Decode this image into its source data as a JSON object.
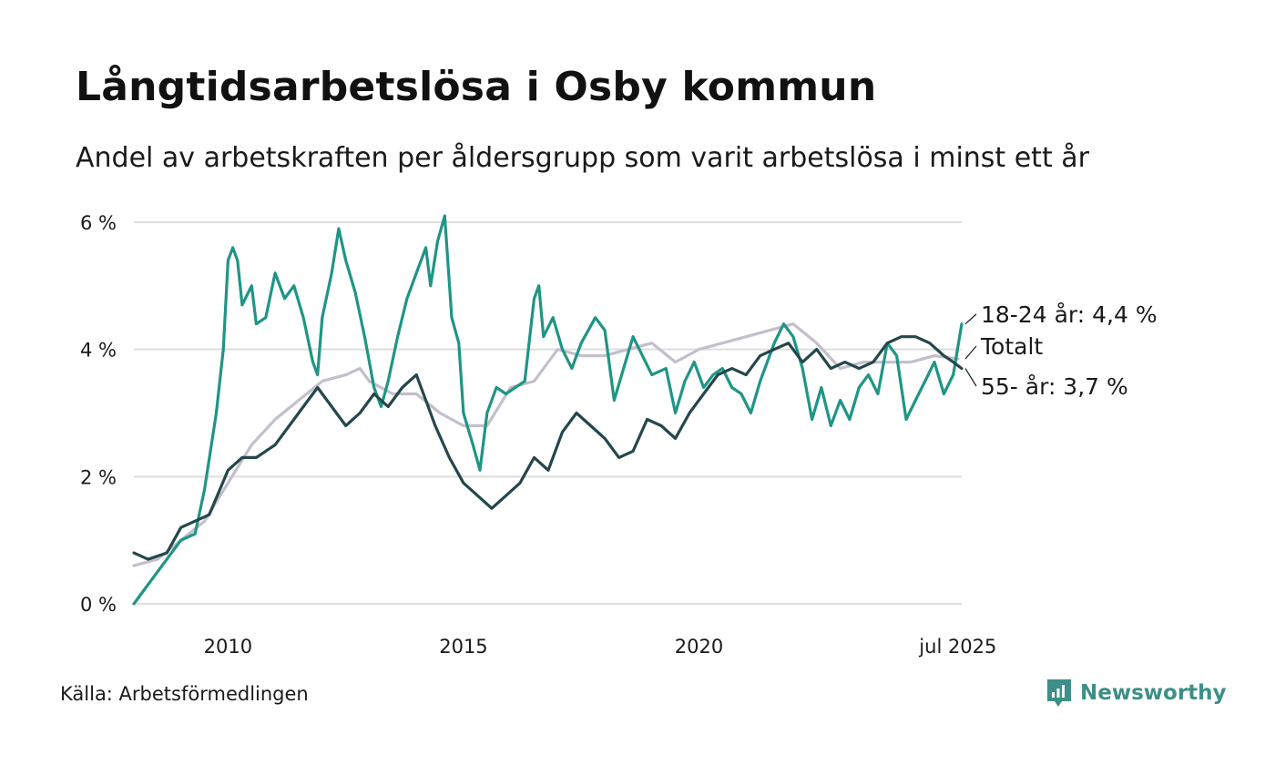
{
  "title": "Långtidsarbetslösa i Osby kommun",
  "subtitle": "Andel av arbetskraften per åldersgrupp som varit arbetslösa i minst ett år",
  "source": "Källa: Arbetsförmedlingen",
  "brand": {
    "name": "Newsworthy",
    "icon": "newsworthy-logo-icon",
    "color": "#3d8f87"
  },
  "chart_data": {
    "type": "line",
    "x_unit": "year (decimal)",
    "xlim": [
      2008.0,
      2025.58
    ],
    "ylim": [
      0,
      6.2
    ],
    "x_ticks": [
      {
        "value": 2010,
        "label": "2010"
      },
      {
        "value": 2015,
        "label": "2015"
      },
      {
        "value": 2020,
        "label": "2020"
      },
      {
        "value": 2025.5,
        "label": "jul 2025"
      }
    ],
    "y_ticks": [
      {
        "value": 0,
        "label": "0 %"
      },
      {
        "value": 2,
        "label": "2 %"
      },
      {
        "value": 4,
        "label": "4 %"
      },
      {
        "value": 6,
        "label": "6 %"
      }
    ],
    "grid": true,
    "series": [
      {
        "name": "Totalt",
        "end_label": "Totalt",
        "color": "#c3bfcb",
        "points": [
          [
            2008.0,
            0.6
          ],
          [
            2008.5,
            0.7
          ],
          [
            2009.0,
            1.0
          ],
          [
            2009.5,
            1.3
          ],
          [
            2010.0,
            1.9
          ],
          [
            2010.5,
            2.5
          ],
          [
            2011.0,
            2.9
          ],
          [
            2011.5,
            3.2
          ],
          [
            2012.0,
            3.5
          ],
          [
            2012.5,
            3.6
          ],
          [
            2012.8,
            3.7
          ],
          [
            2013.0,
            3.5
          ],
          [
            2013.5,
            3.3
          ],
          [
            2014.0,
            3.3
          ],
          [
            2014.5,
            3.0
          ],
          [
            2015.0,
            2.8
          ],
          [
            2015.5,
            2.8
          ],
          [
            2016.0,
            3.4
          ],
          [
            2016.5,
            3.5
          ],
          [
            2017.0,
            4.0
          ],
          [
            2017.5,
            3.9
          ],
          [
            2018.0,
            3.9
          ],
          [
            2018.5,
            4.0
          ],
          [
            2019.0,
            4.1
          ],
          [
            2019.5,
            3.8
          ],
          [
            2020.0,
            4.0
          ],
          [
            2020.5,
            4.1
          ],
          [
            2021.0,
            4.2
          ],
          [
            2021.5,
            4.3
          ],
          [
            2022.0,
            4.4
          ],
          [
            2022.5,
            4.1
          ],
          [
            2023.0,
            3.7
          ],
          [
            2023.5,
            3.8
          ],
          [
            2024.0,
            3.8
          ],
          [
            2024.5,
            3.8
          ],
          [
            2025.0,
            3.9
          ],
          [
            2025.5,
            3.85
          ]
        ]
      },
      {
        "name": "18-24 år",
        "end_label": "18-24 år: 4,4 %",
        "color": "#1f9585",
        "points": [
          [
            2008.0,
            0.0
          ],
          [
            2008.3,
            0.3
          ],
          [
            2008.7,
            0.7
          ],
          [
            2009.0,
            1.0
          ],
          [
            2009.3,
            1.1
          ],
          [
            2009.5,
            1.8
          ],
          [
            2009.75,
            3.0
          ],
          [
            2009.9,
            4.0
          ],
          [
            2010.0,
            5.4
          ],
          [
            2010.1,
            5.6
          ],
          [
            2010.2,
            5.4
          ],
          [
            2010.3,
            4.7
          ],
          [
            2010.5,
            5.0
          ],
          [
            2010.6,
            4.4
          ],
          [
            2010.8,
            4.5
          ],
          [
            2011.0,
            5.2
          ],
          [
            2011.2,
            4.8
          ],
          [
            2011.4,
            5.0
          ],
          [
            2011.6,
            4.5
          ],
          [
            2011.8,
            3.8
          ],
          [
            2011.9,
            3.6
          ],
          [
            2012.0,
            4.5
          ],
          [
            2012.2,
            5.2
          ],
          [
            2012.35,
            5.9
          ],
          [
            2012.5,
            5.4
          ],
          [
            2012.7,
            4.9
          ],
          [
            2012.9,
            4.2
          ],
          [
            2013.1,
            3.4
          ],
          [
            2013.25,
            3.1
          ],
          [
            2013.4,
            3.5
          ],
          [
            2013.6,
            4.2
          ],
          [
            2013.8,
            4.8
          ],
          [
            2014.0,
            5.2
          ],
          [
            2014.2,
            5.6
          ],
          [
            2014.3,
            5.0
          ],
          [
            2014.45,
            5.7
          ],
          [
            2014.6,
            6.1
          ],
          [
            2014.75,
            4.5
          ],
          [
            2014.9,
            4.1
          ],
          [
            2015.0,
            3.0
          ],
          [
            2015.2,
            2.5
          ],
          [
            2015.35,
            2.1
          ],
          [
            2015.5,
            3.0
          ],
          [
            2015.7,
            3.4
          ],
          [
            2015.9,
            3.3
          ],
          [
            2016.1,
            3.4
          ],
          [
            2016.3,
            3.5
          ],
          [
            2016.5,
            4.8
          ],
          [
            2016.6,
            5.0
          ],
          [
            2016.7,
            4.2
          ],
          [
            2016.9,
            4.5
          ],
          [
            2017.1,
            4.0
          ],
          [
            2017.3,
            3.7
          ],
          [
            2017.5,
            4.1
          ],
          [
            2017.8,
            4.5
          ],
          [
            2018.0,
            4.3
          ],
          [
            2018.2,
            3.2
          ],
          [
            2018.4,
            3.7
          ],
          [
            2018.6,
            4.2
          ],
          [
            2018.8,
            3.9
          ],
          [
            2019.0,
            3.6
          ],
          [
            2019.3,
            3.7
          ],
          [
            2019.5,
            3.0
          ],
          [
            2019.7,
            3.5
          ],
          [
            2019.9,
            3.8
          ],
          [
            2020.1,
            3.4
          ],
          [
            2020.3,
            3.6
          ],
          [
            2020.5,
            3.7
          ],
          [
            2020.7,
            3.4
          ],
          [
            2020.9,
            3.3
          ],
          [
            2021.1,
            3.0
          ],
          [
            2021.3,
            3.5
          ],
          [
            2021.6,
            4.1
          ],
          [
            2021.8,
            4.4
          ],
          [
            2022.0,
            4.2
          ],
          [
            2022.2,
            3.7
          ],
          [
            2022.4,
            2.9
          ],
          [
            2022.6,
            3.4
          ],
          [
            2022.8,
            2.8
          ],
          [
            2023.0,
            3.2
          ],
          [
            2023.2,
            2.9
          ],
          [
            2023.4,
            3.4
          ],
          [
            2023.6,
            3.6
          ],
          [
            2023.8,
            3.3
          ],
          [
            2024.0,
            4.1
          ],
          [
            2024.2,
            3.9
          ],
          [
            2024.4,
            2.9
          ],
          [
            2024.6,
            3.2
          ],
          [
            2024.8,
            3.5
          ],
          [
            2025.0,
            3.8
          ],
          [
            2025.2,
            3.3
          ],
          [
            2025.4,
            3.6
          ],
          [
            2025.58,
            4.4
          ]
        ]
      },
      {
        "name": "55- år",
        "end_label": "55- år: 3,7 %",
        "color": "#24474a",
        "points": [
          [
            2008.0,
            0.8
          ],
          [
            2008.3,
            0.7
          ],
          [
            2008.7,
            0.8
          ],
          [
            2009.0,
            1.2
          ],
          [
            2009.3,
            1.3
          ],
          [
            2009.6,
            1.4
          ],
          [
            2010.0,
            2.1
          ],
          [
            2010.3,
            2.3
          ],
          [
            2010.6,
            2.3
          ],
          [
            2011.0,
            2.5
          ],
          [
            2011.3,
            2.8
          ],
          [
            2011.6,
            3.1
          ],
          [
            2011.9,
            3.4
          ],
          [
            2012.2,
            3.1
          ],
          [
            2012.5,
            2.8
          ],
          [
            2012.8,
            3.0
          ],
          [
            2013.1,
            3.3
          ],
          [
            2013.4,
            3.1
          ],
          [
            2013.7,
            3.4
          ],
          [
            2014.0,
            3.6
          ],
          [
            2014.2,
            3.2
          ],
          [
            2014.4,
            2.8
          ],
          [
            2014.7,
            2.3
          ],
          [
            2015.0,
            1.9
          ],
          [
            2015.3,
            1.7
          ],
          [
            2015.6,
            1.5
          ],
          [
            2015.9,
            1.7
          ],
          [
            2016.2,
            1.9
          ],
          [
            2016.5,
            2.3
          ],
          [
            2016.8,
            2.1
          ],
          [
            2017.1,
            2.7
          ],
          [
            2017.4,
            3.0
          ],
          [
            2017.7,
            2.8
          ],
          [
            2018.0,
            2.6
          ],
          [
            2018.3,
            2.3
          ],
          [
            2018.6,
            2.4
          ],
          [
            2018.9,
            2.9
          ],
          [
            2019.2,
            2.8
          ],
          [
            2019.5,
            2.6
          ],
          [
            2019.8,
            3.0
          ],
          [
            2020.1,
            3.3
          ],
          [
            2020.4,
            3.6
          ],
          [
            2020.7,
            3.7
          ],
          [
            2021.0,
            3.6
          ],
          [
            2021.3,
            3.9
          ],
          [
            2021.6,
            4.0
          ],
          [
            2021.9,
            4.1
          ],
          [
            2022.2,
            3.8
          ],
          [
            2022.5,
            4.0
          ],
          [
            2022.8,
            3.7
          ],
          [
            2023.1,
            3.8
          ],
          [
            2023.4,
            3.7
          ],
          [
            2023.7,
            3.8
          ],
          [
            2024.0,
            4.1
          ],
          [
            2024.3,
            4.2
          ],
          [
            2024.6,
            4.2
          ],
          [
            2024.9,
            4.1
          ],
          [
            2025.2,
            3.9
          ],
          [
            2025.4,
            3.8
          ],
          [
            2025.58,
            3.7
          ]
        ]
      }
    ]
  }
}
